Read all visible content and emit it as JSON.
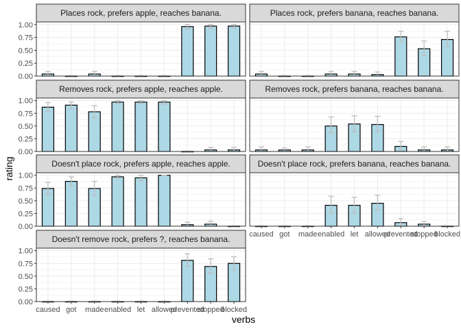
{
  "chart_data": {
    "type": "bar",
    "xlabel": "verbs",
    "ylabel": "rating",
    "categories": [
      "caused",
      "got",
      "made",
      "enabled",
      "let",
      "allowed",
      "prevented",
      "stopped",
      "blocked"
    ],
    "yticks": [
      "0.00",
      "0.25",
      "0.50",
      "0.75",
      "1.00"
    ],
    "ylim": [
      0,
      1.05
    ],
    "grid": true,
    "colors": {
      "bar_fill": "#add8e6",
      "bar_stroke": "#000000",
      "error_bar": "#bdbdbd",
      "strip_fill": "#d9d9d9",
      "panel_border": "#333333",
      "grid": "#ebebeb"
    },
    "panels": [
      {
        "title": "Places rock, prefers apple, reaches banana.",
        "values": [
          0.04,
          0.0,
          0.04,
          0.0,
          0.0,
          0.0,
          0.96,
          0.97,
          0.97
        ],
        "err_low": [
          0.01,
          0.0,
          0.01,
          0.0,
          0.0,
          0.0,
          0.91,
          0.93,
          0.93
        ],
        "err_high": [
          0.09,
          0.01,
          0.09,
          0.01,
          0.01,
          0.01,
          1.0,
          1.0,
          1.0
        ],
        "show_x_ticks": false
      },
      {
        "title": "Places rock, prefers banana, reaches banana.",
        "values": [
          0.04,
          0.0,
          0.0,
          0.04,
          0.04,
          0.03,
          0.76,
          0.53,
          0.71
        ],
        "err_low": [
          0.01,
          0.0,
          0.0,
          0.01,
          0.01,
          0.0,
          0.66,
          0.4,
          0.57
        ],
        "err_high": [
          0.09,
          0.01,
          0.01,
          0.09,
          0.09,
          0.08,
          0.87,
          0.68,
          0.87
        ],
        "show_x_ticks": false
      },
      {
        "title": "Removes rock, prefers apple, reaches apple.",
        "values": [
          0.87,
          0.91,
          0.78,
          0.97,
          0.97,
          0.97,
          0.0,
          0.03,
          0.03
        ],
        "err_low": [
          0.78,
          0.84,
          0.66,
          0.94,
          0.94,
          0.93,
          0.0,
          0.0,
          0.0
        ],
        "err_high": [
          0.96,
          0.97,
          0.9,
          1.0,
          1.0,
          1.0,
          0.01,
          0.08,
          0.08
        ],
        "show_x_ticks": false
      },
      {
        "title": "Removes rock, prefers banana, reaches banana.",
        "values": [
          0.03,
          0.03,
          0.03,
          0.5,
          0.54,
          0.53,
          0.1,
          0.03,
          0.03
        ],
        "err_low": [
          0.0,
          0.0,
          0.0,
          0.37,
          0.39,
          0.39,
          0.03,
          0.0,
          0.0
        ],
        "err_high": [
          0.09,
          0.07,
          0.09,
          0.68,
          0.7,
          0.69,
          0.2,
          0.09,
          0.09
        ],
        "show_x_ticks": false
      },
      {
        "title": "Doesn't place rock, prefers apple, reaches apple.",
        "values": [
          0.74,
          0.88,
          0.74,
          0.97,
          0.95,
          1.0,
          0.03,
          0.04,
          0.0
        ],
        "err_low": [
          0.62,
          0.79,
          0.6,
          0.94,
          0.89,
          1.0,
          0.0,
          0.01,
          0.0
        ],
        "err_high": [
          0.86,
          0.97,
          0.88,
          1.0,
          1.0,
          1.0,
          0.08,
          0.1,
          0.01
        ],
        "show_x_ticks": false
      },
      {
        "title": "Doesn't place rock, prefers banana, reaches banana.",
        "values": [
          0.0,
          0.0,
          0.0,
          0.41,
          0.41,
          0.45,
          0.07,
          0.04,
          0.0
        ],
        "err_low": [
          0.0,
          0.0,
          0.0,
          0.26,
          0.26,
          0.32,
          0.01,
          0.01,
          0.0
        ],
        "err_high": [
          0.01,
          0.01,
          0.01,
          0.59,
          0.57,
          0.61,
          0.15,
          0.09,
          0.01
        ],
        "show_x_ticks": true
      },
      {
        "title": "Doesn't remove rock, prefers ?, reaches banana.",
        "values": [
          0.0,
          0.0,
          0.0,
          0.0,
          0.0,
          0.0,
          0.81,
          0.69,
          0.75
        ],
        "err_low": [
          0.0,
          0.0,
          0.0,
          0.0,
          0.0,
          0.0,
          0.69,
          0.56,
          0.62
        ],
        "err_high": [
          0.01,
          0.01,
          0.01,
          0.01,
          0.01,
          0.01,
          0.94,
          0.84,
          0.88
        ],
        "show_x_ticks": true
      }
    ]
  }
}
